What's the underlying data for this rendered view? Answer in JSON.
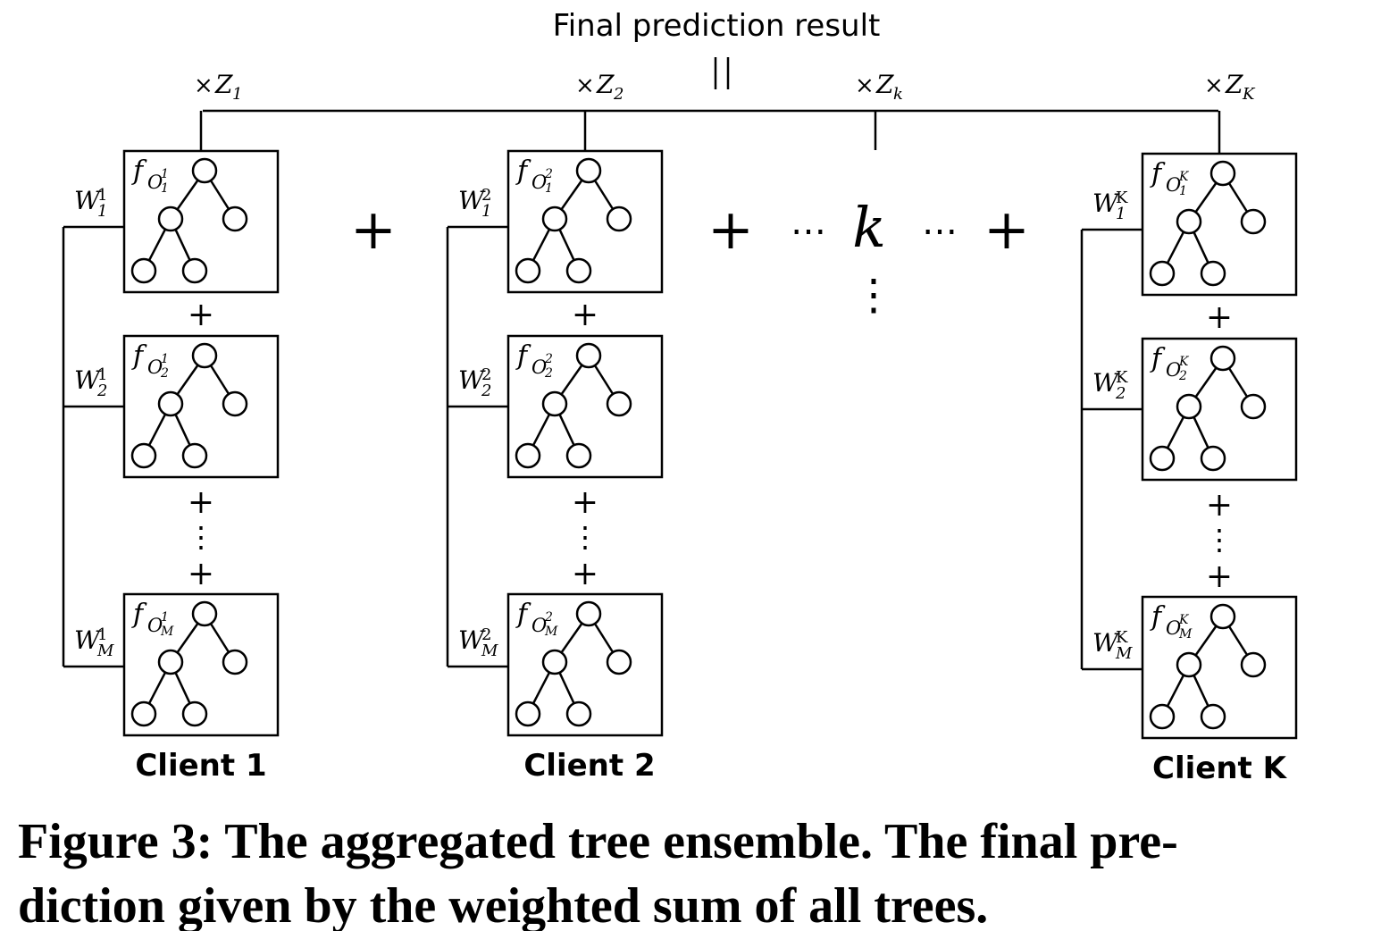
{
  "title": "Final prediction result",
  "symbols": {
    "plus": "+",
    "vdots": "⋮",
    "hdots": "⋯",
    "times": "×",
    "k": "k"
  },
  "middle_multiplier": {
    "symbol": "Z",
    "sub": "k"
  },
  "clients": [
    {
      "label": "Client 1",
      "multiplier": {
        "symbol": "Z",
        "sub": "1"
      },
      "trees": [
        {
          "weight": {
            "symbol": "W",
            "sub": "1",
            "sup": "1"
          },
          "function": {
            "symbol": "f",
            "base": "O",
            "sub": "1",
            "sup": "1"
          }
        },
        {
          "weight": {
            "symbol": "W",
            "sub": "2",
            "sup": "1"
          },
          "function": {
            "symbol": "f",
            "base": "O",
            "sub": "2",
            "sup": "1"
          }
        },
        {
          "weight": {
            "symbol": "W",
            "sub": "M",
            "sup": "1"
          },
          "function": {
            "symbol": "f",
            "base": "O",
            "sub": "M",
            "sup": "1"
          }
        }
      ]
    },
    {
      "label": "Client 2",
      "multiplier": {
        "symbol": "Z",
        "sub": "2"
      },
      "trees": [
        {
          "weight": {
            "symbol": "W",
            "sub": "1",
            "sup": "2"
          },
          "function": {
            "symbol": "f",
            "base": "O",
            "sub": "1",
            "sup": "2"
          }
        },
        {
          "weight": {
            "symbol": "W",
            "sub": "2",
            "sup": "2"
          },
          "function": {
            "symbol": "f",
            "base": "O",
            "sub": "2",
            "sup": "2"
          }
        },
        {
          "weight": {
            "symbol": "W",
            "sub": "M",
            "sup": "2"
          },
          "function": {
            "symbol": "f",
            "base": "O",
            "sub": "M",
            "sup": "2"
          }
        }
      ]
    },
    {
      "label": "Client K",
      "multiplier": {
        "symbol": "Z",
        "sub": "K"
      },
      "trees": [
        {
          "weight": {
            "symbol": "W",
            "sub": "1",
            "sup": "K"
          },
          "function": {
            "symbol": "f",
            "base": "O",
            "sub": "1",
            "sup": "K"
          }
        },
        {
          "weight": {
            "symbol": "W",
            "sub": "2",
            "sup": "K"
          },
          "function": {
            "symbol": "f",
            "base": "O",
            "sub": "2",
            "sup": "K"
          }
        },
        {
          "weight": {
            "symbol": "W",
            "sub": "M",
            "sup": "K"
          },
          "function": {
            "symbol": "f",
            "base": "O",
            "sub": "M",
            "sup": "K"
          }
        }
      ]
    }
  ],
  "caption": {
    "lines": [
      "Figure 3: The aggregated tree ensemble. The final pre-",
      "diction given by the weighted sum of all trees."
    ]
  }
}
